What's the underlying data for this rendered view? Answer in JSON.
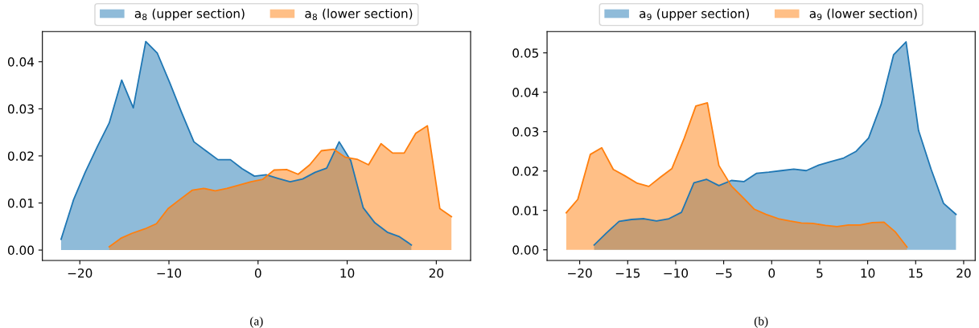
{
  "chart_data": [
    {
      "type": "area",
      "legend": "top",
      "grid": false,
      "series": [
        {
          "name": "a$_{8}$ (upper section)",
          "color": "#1f77b4",
          "x": [
            -22.1,
            -20.7,
            -19.4,
            -18.0,
            -16.7,
            -15.3,
            -14.0,
            -12.6,
            -11.3,
            -9.9,
            -8.6,
            -7.2,
            -5.8,
            -4.5,
            -3.1,
            -1.8,
            -0.4,
            0.9,
            2.3,
            3.6,
            5.0,
            6.4,
            7.7,
            9.1,
            10.4,
            11.8,
            13.1,
            14.5,
            15.8,
            17.2
          ],
          "values": [
            0.0023,
            0.0107,
            0.0165,
            0.0221,
            0.027,
            0.0361,
            0.0302,
            0.0443,
            0.0418,
            0.0355,
            0.0293,
            0.023,
            0.021,
            0.0192,
            0.0192,
            0.0173,
            0.0157,
            0.016,
            0.0152,
            0.0145,
            0.0151,
            0.0165,
            0.0174,
            0.023,
            0.019,
            0.009,
            0.0058,
            0.0038,
            0.0029,
            0.0011
          ]
        },
        {
          "name": "a$_{8}$ (lower section)",
          "color": "#ff7f0e",
          "x": [
            -16.7,
            -15.4,
            -14.1,
            -12.7,
            -11.4,
            -10.1,
            -8.8,
            -7.4,
            -6.1,
            -4.8,
            -3.5,
            -2.1,
            -0.8,
            0.5,
            1.8,
            3.2,
            4.5,
            5.8,
            7.1,
            8.5,
            9.8,
            11.1,
            12.4,
            13.8,
            15.1,
            16.4,
            17.7,
            19.0,
            20.4,
            21.7
          ],
          "values": [
            0.0007,
            0.0025,
            0.0036,
            0.0045,
            0.0056,
            0.0088,
            0.0107,
            0.0127,
            0.0131,
            0.0126,
            0.0131,
            0.0138,
            0.0145,
            0.015,
            0.017,
            0.0171,
            0.0161,
            0.0181,
            0.0211,
            0.0214,
            0.0197,
            0.0193,
            0.0181,
            0.0226,
            0.0206,
            0.0206,
            0.0248,
            0.0264,
            0.0088,
            0.0071
          ]
        }
      ],
      "xlim": [
        -24.2,
        23.85
      ],
      "ylim": [
        -0.0022,
        0.0464
      ],
      "xticks": [
        {
          "value": -20,
          "label": "−20"
        },
        {
          "value": -10,
          "label": "−10"
        },
        0,
        10,
        20
      ],
      "yticks": [
        {
          "value": 0,
          "label": "0.00"
        },
        {
          "value": 0.01,
          "label": "0.01"
        },
        {
          "value": 0.02,
          "label": "0.02"
        },
        {
          "value": 0.03,
          "label": "0.03"
        },
        {
          "value": 0.04,
          "label": "0.04"
        }
      ],
      "annotations": [
        "(a)"
      ]
    },
    {
      "type": "area",
      "legend": "top",
      "grid": false,
      "series": [
        {
          "name": "a$_{9}$ (upper section)",
          "color": "#1f77b4",
          "x": [
            -18.5,
            -17.2,
            -15.9,
            -14.6,
            -13.3,
            -12.0,
            -10.7,
            -9.4,
            -8.1,
            -6.8,
            -5.5,
            -4.2,
            -2.9,
            -1.6,
            -0.3,
            1.0,
            2.3,
            3.6,
            4.9,
            6.2,
            7.5,
            8.8,
            10.1,
            11.4,
            12.7,
            14.0,
            15.3,
            16.6,
            17.9,
            19.2
          ],
          "values": [
            0.0012,
            0.0043,
            0.0072,
            0.0077,
            0.0079,
            0.0073,
            0.0079,
            0.0095,
            0.017,
            0.0179,
            0.0163,
            0.0176,
            0.0173,
            0.0194,
            0.0197,
            0.0201,
            0.0205,
            0.0201,
            0.0215,
            0.0224,
            0.0233,
            0.025,
            0.0284,
            0.0369,
            0.0495,
            0.0528,
            0.0303,
            0.0205,
            0.0118,
            0.009
          ]
        },
        {
          "name": "a$_{9}$ (lower section)",
          "color": "#ff7f0e",
          "x": [
            -21.4,
            -20.2,
            -18.9,
            -17.7,
            -16.5,
            -15.3,
            -14.0,
            -12.8,
            -11.6,
            -10.4,
            -9.1,
            -7.9,
            -6.7,
            -5.5,
            -4.2,
            -3.0,
            -1.8,
            -0.6,
            0.7,
            1.9,
            3.1,
            4.3,
            5.6,
            6.8,
            8.0,
            9.2,
            10.5,
            11.7,
            12.9,
            14.1
          ],
          "values": [
            0.0094,
            0.0128,
            0.0242,
            0.0259,
            0.0204,
            0.0188,
            0.0169,
            0.0161,
            0.0184,
            0.0206,
            0.0284,
            0.0365,
            0.0373,
            0.0214,
            0.0162,
            0.0133,
            0.0103,
            0.009,
            0.0079,
            0.0073,
            0.0068,
            0.0067,
            0.0062,
            0.0059,
            0.0063,
            0.0063,
            0.0069,
            0.007,
            0.0045,
            0.0007
          ]
        }
      ],
      "xlim": [
        -23.4,
        21.2
      ],
      "ylim": [
        -0.0027,
        0.0554
      ],
      "xticks": [
        {
          "value": -20,
          "label": "−20"
        },
        {
          "value": -15,
          "label": "−15"
        },
        {
          "value": -10,
          "label": "−10"
        },
        {
          "value": -5,
          "label": "−5"
        },
        0,
        5,
        10,
        15,
        20
      ],
      "yticks": [
        {
          "value": 0,
          "label": "0.00"
        },
        {
          "value": 0.01,
          "label": "0.01"
        },
        {
          "value": 0.02,
          "label": "0.02"
        },
        {
          "value": 0.03,
          "label": "0.03"
        },
        {
          "value": 0.04,
          "label": "0.04"
        },
        {
          "value": 0.05,
          "label": "0.05"
        }
      ],
      "annotations": [
        "(b)"
      ]
    }
  ]
}
